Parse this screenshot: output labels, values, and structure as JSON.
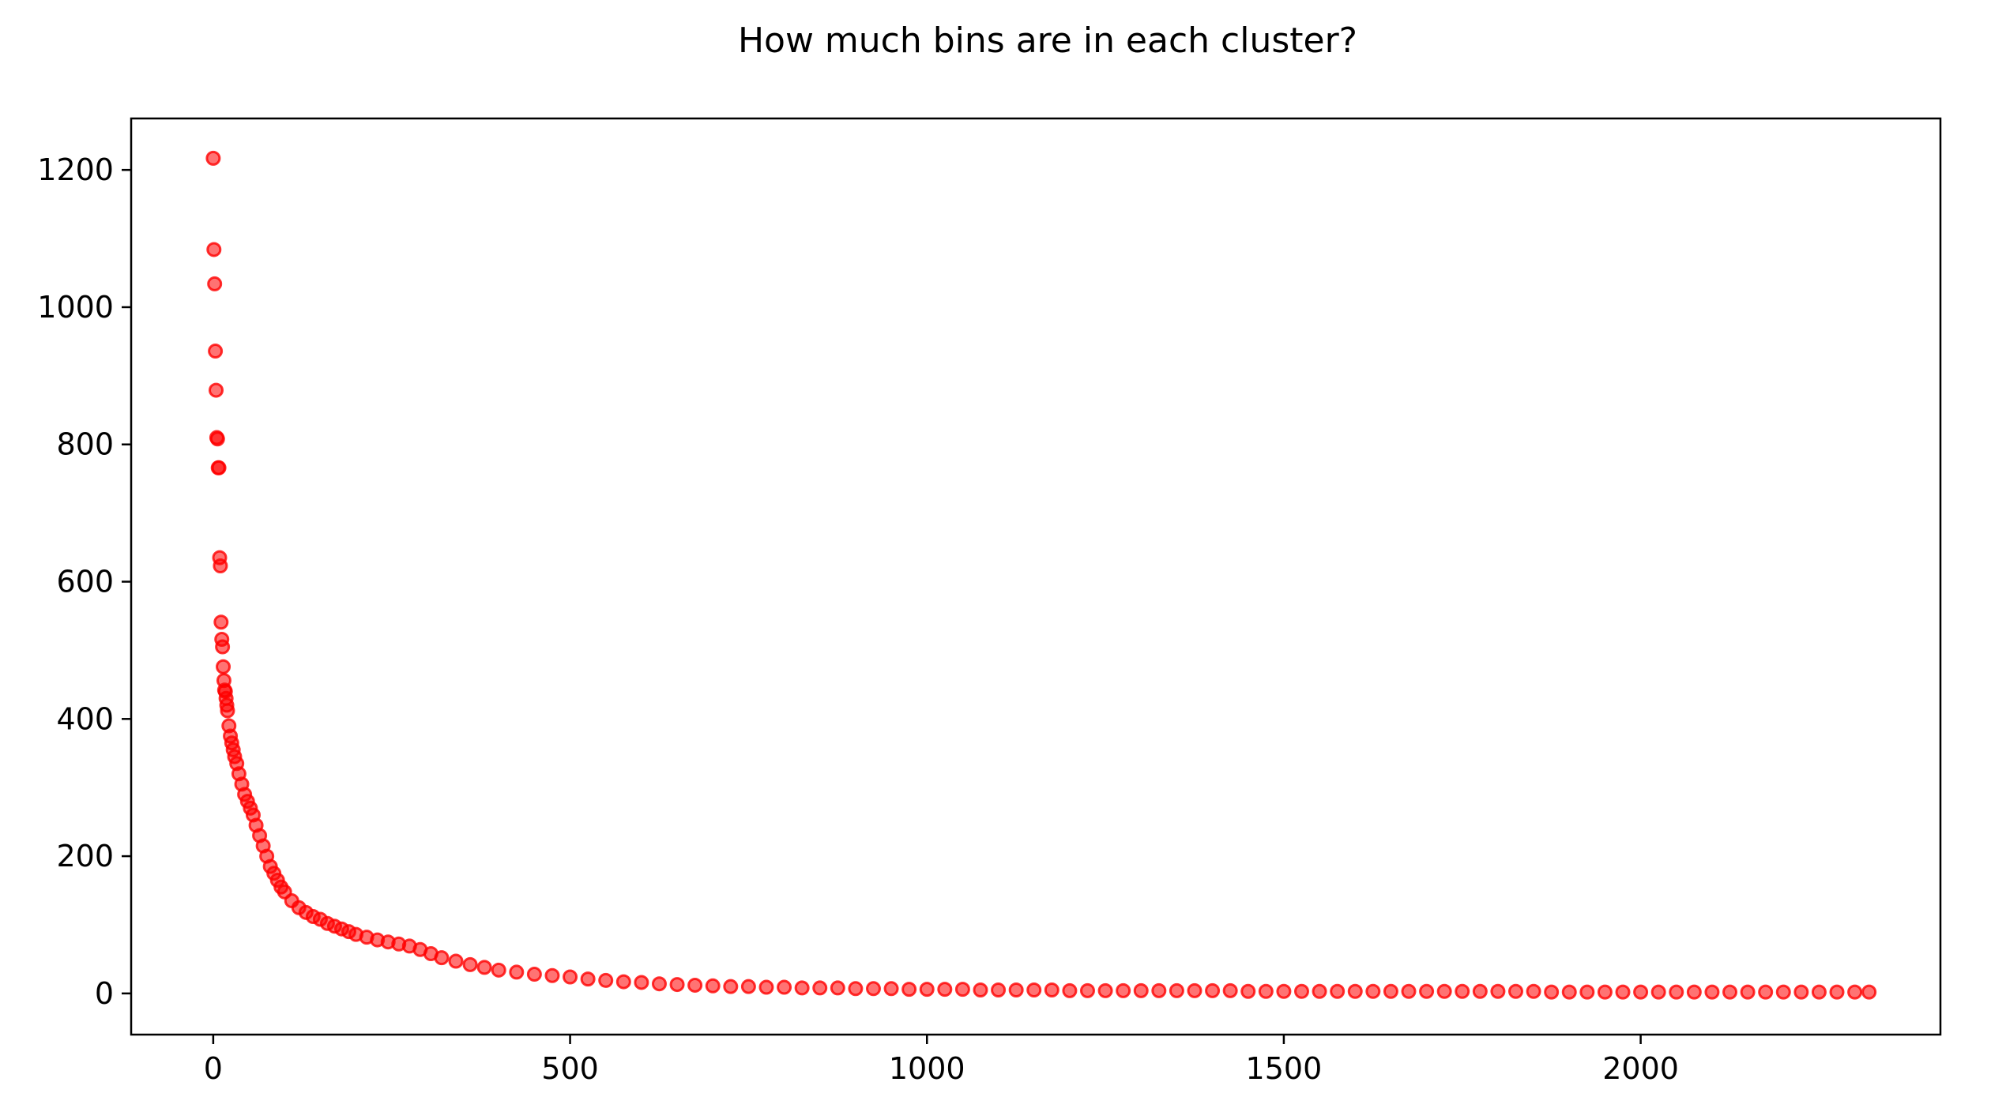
{
  "chart_data": {
    "type": "scatter",
    "title": "How much bins are in each cluster?",
    "xlabel": "",
    "ylabel": "",
    "xlim": [
      -115,
      2420
    ],
    "ylim": [
      -60,
      1275
    ],
    "xticks": [
      0,
      500,
      1000,
      1500,
      2000
    ],
    "yticks": [
      0,
      200,
      400,
      600,
      800,
      1000,
      1200
    ],
    "grid": false,
    "legend": null,
    "marker_color": "#ff0000",
    "marker_alpha": 0.55,
    "series": [
      {
        "x": [
          0,
          1,
          2,
          3,
          4,
          5,
          6,
          7,
          8,
          9,
          10,
          11,
          12,
          13,
          14,
          15,
          16,
          17,
          18,
          19,
          20,
          22,
          24,
          26,
          28,
          30,
          33,
          36,
          40,
          44,
          48,
          52,
          56,
          60,
          65,
          70,
          75,
          80,
          85,
          90,
          95,
          100,
          110,
          120,
          130,
          140,
          150,
          160,
          170,
          180,
          190,
          200,
          215,
          230,
          245,
          260,
          275,
          290,
          305,
          320,
          340,
          360,
          380,
          400,
          425,
          450,
          475,
          500,
          525,
          550,
          575,
          600,
          625,
          650,
          675,
          700,
          725,
          750,
          775,
          800,
          825,
          850,
          875,
          900,
          925,
          950,
          975,
          1000,
          1025,
          1050,
          1075,
          1100,
          1125,
          1150,
          1175,
          1200,
          1225,
          1250,
          1275,
          1300,
          1325,
          1350,
          1375,
          1400,
          1425,
          1450,
          1475,
          1500,
          1525,
          1550,
          1575,
          1600,
          1625,
          1650,
          1675,
          1700,
          1725,
          1750,
          1775,
          1800,
          1825,
          1850,
          1875,
          1900,
          1925,
          1950,
          1975,
          2000,
          2025,
          2050,
          2075,
          2100,
          2125,
          2150,
          2175,
          2200,
          2225,
          2250,
          2275,
          2300,
          2320
        ],
        "y": [
          1217,
          1084,
          1034,
          936,
          879,
          810,
          808,
          766,
          766,
          635,
          623,
          541,
          516,
          505,
          476,
          456,
          442,
          440,
          430,
          420,
          412,
          390,
          375,
          365,
          355,
          345,
          335,
          320,
          305,
          290,
          280,
          270,
          260,
          245,
          230,
          215,
          200,
          185,
          175,
          165,
          155,
          148,
          135,
          125,
          118,
          112,
          108,
          102,
          98,
          94,
          90,
          86,
          82,
          78,
          75,
          72,
          69,
          64,
          58,
          52,
          47,
          42,
          38,
          34,
          31,
          28,
          26,
          24,
          21,
          19,
          17,
          16,
          14,
          13,
          12,
          11,
          10,
          10,
          9,
          9,
          8,
          8,
          8,
          7,
          7,
          7,
          6,
          6,
          6,
          6,
          5,
          5,
          5,
          5,
          5,
          4,
          4,
          4,
          4,
          4,
          4,
          4,
          4,
          4,
          4,
          3,
          3,
          3,
          3,
          3,
          3,
          3,
          3,
          3,
          3,
          3,
          3,
          3,
          3,
          3,
          3,
          3,
          2,
          2,
          2,
          2,
          2,
          2,
          2,
          2,
          2,
          2,
          2,
          2,
          2,
          2,
          2,
          2,
          2,
          2,
          2
        ]
      }
    ]
  }
}
